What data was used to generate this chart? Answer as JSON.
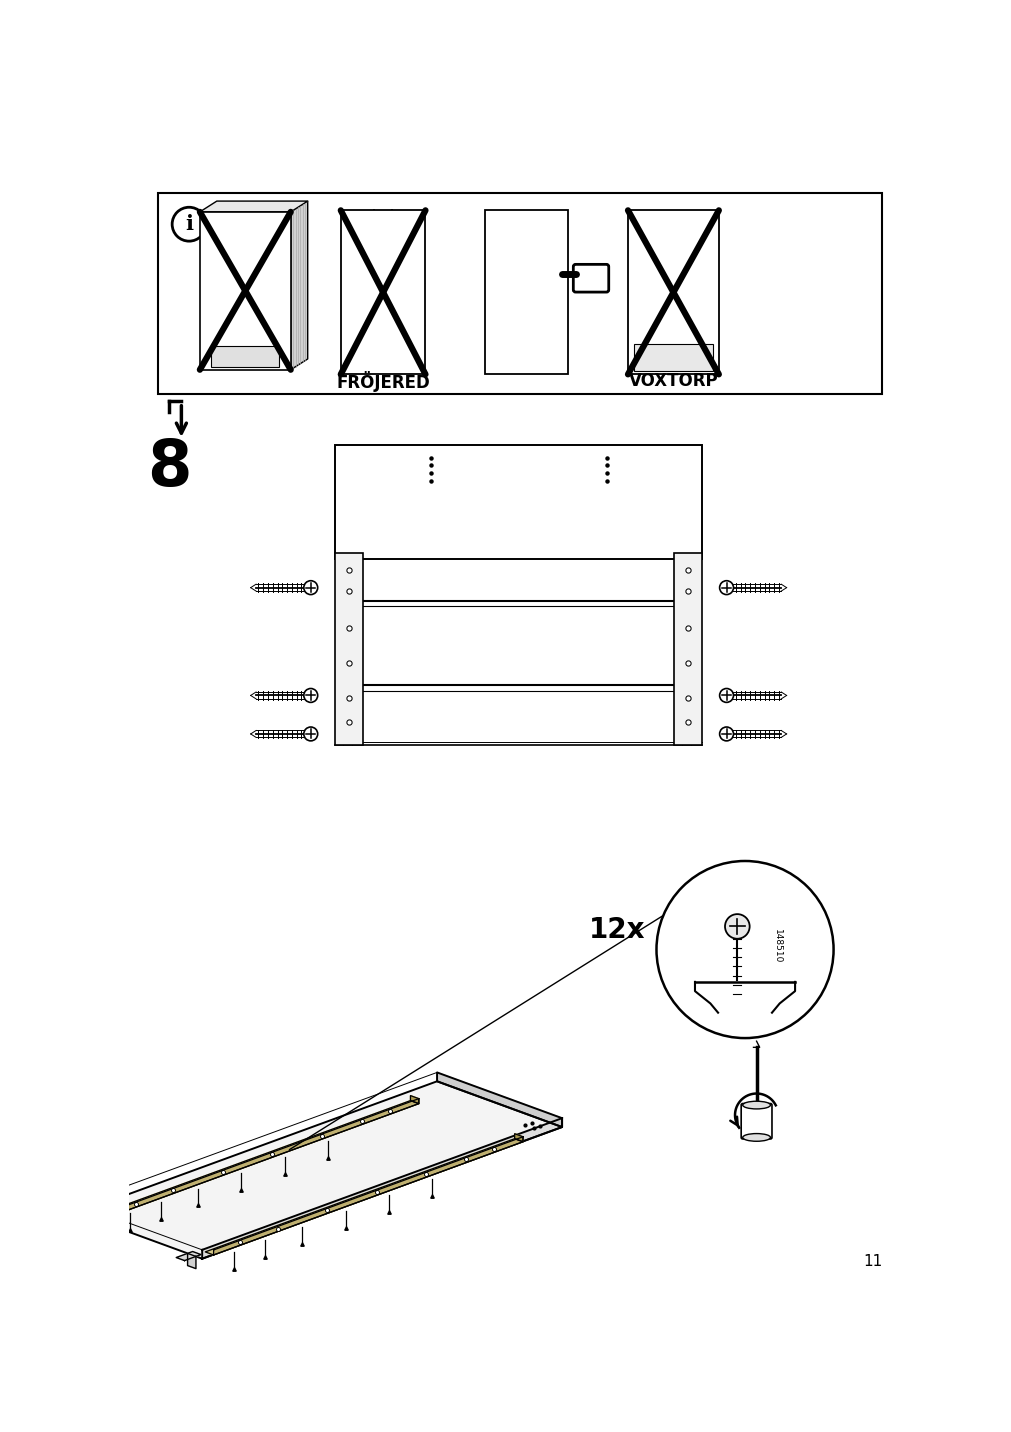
{
  "page_number": "11",
  "bg_color": "#ffffff",
  "line_color": "#000000",
  "step_number": "8",
  "label_frojered": "FRÖJERED",
  "label_voxtorp": "VOXTORP",
  "quantity_label": "12x",
  "part_number": "148510"
}
